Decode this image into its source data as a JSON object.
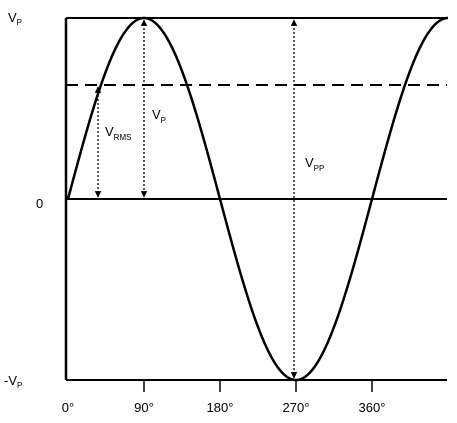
{
  "y_labels": [
    {
      "main": "V",
      "sub": "P"
    },
    {
      "main": "0"
    },
    {
      "main": "-V",
      "sub": "P"
    }
  ],
  "x_labels": [
    "0°",
    "90°",
    "180°",
    "270°",
    "360°"
  ],
  "annotations": [
    {
      "main": "V",
      "sub": "RMS"
    },
    {
      "main": "V",
      "sub": "P"
    },
    {
      "main": "V",
      "sub": "PP"
    }
  ]
}
